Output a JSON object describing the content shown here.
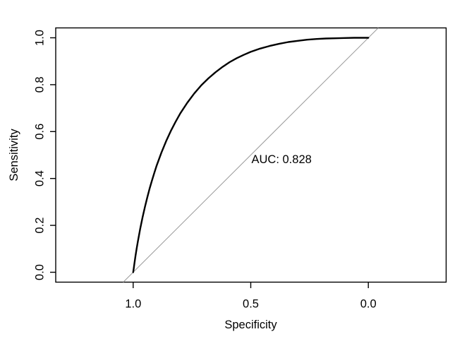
{
  "chart_data": {
    "type": "line",
    "subtype": "roc_curve",
    "title": "",
    "xlabel": "Specificity",
    "ylabel": "Sensitivity",
    "xlim": [
      1.0,
      0.0
    ],
    "ylim": [
      0.0,
      1.0
    ],
    "x_axis_reversed": true,
    "grid": false,
    "x_ticks": [
      1.0,
      0.5,
      0.0
    ],
    "x_tick_labels": [
      "1.0",
      "0.5",
      "0.0"
    ],
    "y_ticks": [
      0.0,
      0.2,
      0.4,
      0.6,
      0.8,
      1.0
    ],
    "y_tick_labels": [
      "0.0",
      "0.2",
      "0.4",
      "0.6",
      "0.8",
      "1.0"
    ],
    "annotation": {
      "text": "AUC: 0.828",
      "auc_value": 0.828,
      "x_specificity": 0.5,
      "y_sensitivity": 0.48
    },
    "series": [
      {
        "name": "roc-curve",
        "color": "#000000",
        "stroke_width": 2.4,
        "points_specificity_sensitivity": [
          [
            1.0,
            0.0
          ],
          [
            0.998,
            0.014
          ],
          [
            0.995,
            0.036
          ],
          [
            0.99,
            0.07
          ],
          [
            0.985,
            0.102
          ],
          [
            0.98,
            0.132
          ],
          [
            0.97,
            0.186
          ],
          [
            0.96,
            0.234
          ],
          [
            0.95,
            0.279
          ],
          [
            0.94,
            0.319
          ],
          [
            0.93,
            0.357
          ],
          [
            0.92,
            0.392
          ],
          [
            0.91,
            0.424
          ],
          [
            0.9,
            0.455
          ],
          [
            0.88,
            0.51
          ],
          [
            0.86,
            0.559
          ],
          [
            0.84,
            0.602
          ],
          [
            0.82,
            0.641
          ],
          [
            0.8,
            0.677
          ],
          [
            0.77,
            0.723
          ],
          [
            0.74,
            0.763
          ],
          [
            0.71,
            0.798
          ],
          [
            0.68,
            0.827
          ],
          [
            0.65,
            0.853
          ],
          [
            0.62,
            0.876
          ],
          [
            0.59,
            0.896
          ],
          [
            0.56,
            0.913
          ],
          [
            0.53,
            0.927
          ],
          [
            0.5,
            0.94
          ],
          [
            0.46,
            0.954
          ],
          [
            0.42,
            0.965
          ],
          [
            0.38,
            0.974
          ],
          [
            0.34,
            0.982
          ],
          [
            0.3,
            0.987
          ],
          [
            0.26,
            0.992
          ],
          [
            0.22,
            0.995
          ],
          [
            0.18,
            0.997
          ],
          [
            0.14,
            0.998
          ],
          [
            0.1,
            0.999
          ],
          [
            0.06,
            1.0
          ],
          [
            0.0,
            1.0
          ]
        ]
      },
      {
        "name": "chance-diagonal",
        "color": "#999999",
        "stroke_width": 1,
        "points_specificity_sensitivity": [
          [
            1.0,
            0.0
          ],
          [
            0.0,
            1.0
          ]
        ],
        "extends_to_plot_edges": true
      }
    ],
    "legend": null
  }
}
